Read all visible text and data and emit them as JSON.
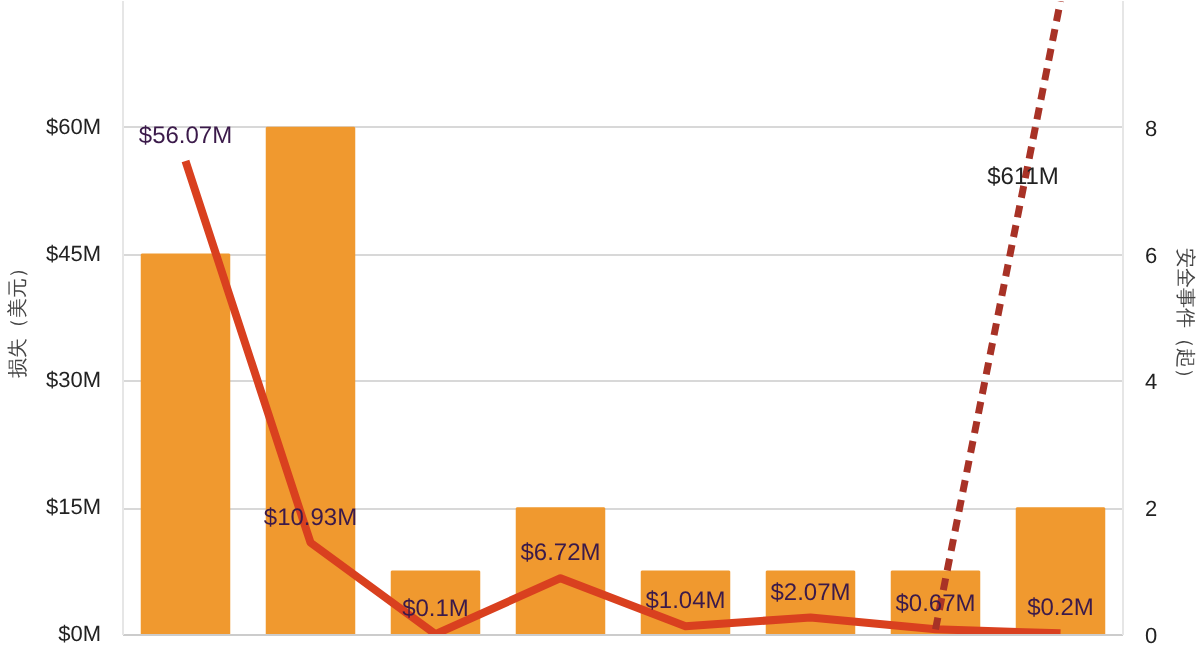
{
  "chart_data": {
    "type": "bar",
    "categories": [
      null,
      null,
      null,
      null,
      null,
      null,
      null,
      null
    ],
    "ylabel": "损失（美元）",
    "y2label": "安全事件（起）",
    "ylim": [
      0,
      75
    ],
    "yticks": [
      {
        "value": 0,
        "label": "$0M"
      },
      {
        "value": 15,
        "label": "$15M"
      },
      {
        "value": 30,
        "label": "$30M"
      },
      {
        "value": 45,
        "label": "$45M"
      },
      {
        "value": 60,
        "label": "$60M"
      }
    ],
    "y2lim": [
      0,
      10
    ],
    "y2ticks": [
      0,
      2,
      4,
      6,
      8
    ],
    "grid": "y",
    "tick_labels": "y",
    "series": [
      {
        "axis": "y2",
        "color": "#f0992f",
        "values": [
          6,
          8,
          1,
          2,
          1,
          1,
          1,
          2
        ]
      },
      {
        "type": "line",
        "axis": "y",
        "color": "#d9401f",
        "line_style": "solid",
        "values": [
          56.07,
          10.93,
          0.1,
          6.72,
          1.04,
          2.07,
          0.67,
          0.2
        ],
        "value_labels": [
          "$56.07M",
          "$10.93M",
          "$0.1M",
          "$6.72M",
          "$1.04M",
          "$2.07M",
          "$0.67M",
          "$0.2M"
        ]
      },
      {
        "type": "line",
        "axis": "y",
        "color": "#a83226",
        "line_style": "dashed",
        "values": [
          null,
          null,
          null,
          null,
          null,
          null,
          0.67,
          75
        ]
      }
    ],
    "annotations": [
      "$611M"
    ]
  }
}
